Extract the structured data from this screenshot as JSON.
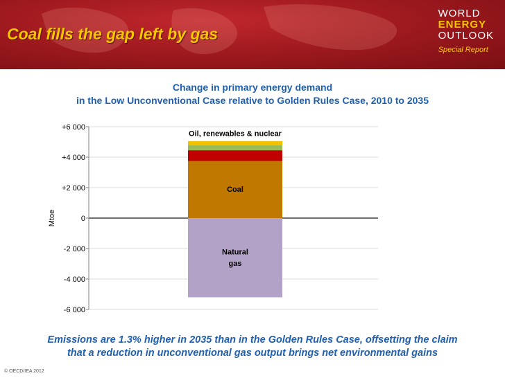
{
  "slide": {
    "title": "Coal fills the gap left by gas",
    "logo": {
      "line1": "WORLD",
      "line2": "ENERGY",
      "line3": "OUTLOOK",
      "line4": "Special Report"
    },
    "footer_line1": "Emissions are 1.3% higher in 2035 than in the Golden Rules Case, offsetting the claim",
    "footer_line2": "that a reduction in unconventional gas output brings net environmental gains",
    "copyright": "© OECD/IEA 2012"
  },
  "chart_data": {
    "type": "bar",
    "stacked": true,
    "title_line1": "Change in primary energy demand",
    "title_line2": "in the Low Unconventional Case relative to Golden Rules Case, 2010 to 2035",
    "ylabel": "Mtoe",
    "ylim": [
      -6000,
      6000
    ],
    "yticks": [
      {
        "value": 6000,
        "label": "+6 000"
      },
      {
        "value": 4000,
        "label": "+4 000"
      },
      {
        "value": 2000,
        "label": "+2 000"
      },
      {
        "value": 0,
        "label": "0"
      },
      {
        "value": -2000,
        "label": "-2 000"
      },
      {
        "value": -4000,
        "label": "-4 000"
      },
      {
        "value": -6000,
        "label": "-6 000"
      }
    ],
    "series": [
      {
        "name": "Coal",
        "value": 3750,
        "color": "#c07800"
      },
      {
        "name": "Oil",
        "value": 700,
        "color": "#c00000"
      },
      {
        "name": "Renewables",
        "value": 350,
        "color": "#9bbb59"
      },
      {
        "name": "Nuclear",
        "value": 250,
        "color": "#f2c200"
      },
      {
        "name": "Natural gas",
        "value": -5200,
        "color": "#b3a2c7"
      }
    ],
    "annotations": {
      "top": "Oil, renewables & nuclear",
      "coal": "Coal",
      "gas_line1": "Natural",
      "gas_line2": "gas"
    }
  }
}
